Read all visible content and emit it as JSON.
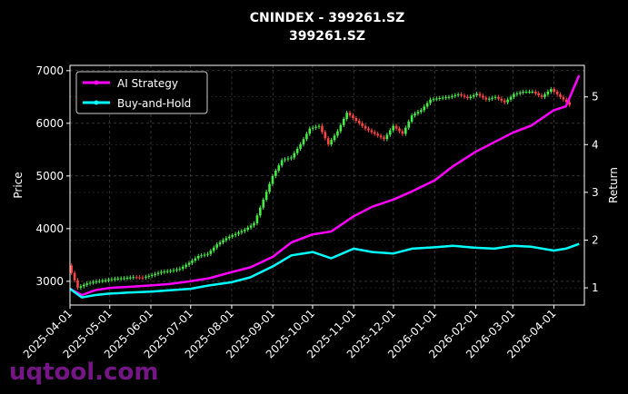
{
  "chart_data": {
    "type": "line",
    "title": "CNINDEX - 399261.SZ",
    "subtitle": "399261.SZ",
    "xlabel": "",
    "ylabel": "Price",
    "y2label": "Return",
    "x_ticks": [
      "2025-04-01",
      "2025-05-01",
      "2025-06-01",
      "2025-07-01",
      "2025-08-01",
      "2025-09-01",
      "2025-10-01",
      "2025-11-01",
      "2025-12-01",
      "2026-01-01",
      "2026-02-01",
      "2026-03-01",
      "2026-04-01"
    ],
    "ylim": [
      2550,
      7100
    ],
    "y_ticks": [
      3000,
      4000,
      5000,
      6000,
      7000
    ],
    "y2lim": [
      0.64,
      5.66
    ],
    "y2_ticks": [
      1,
      2,
      3,
      4,
      5
    ],
    "grid": true,
    "legend_position": "top-left",
    "price_candles": {
      "description_in_chart": "candlestick",
      "up_color": "#44ee44",
      "down_color": "#ff4444",
      "points": [
        [
          "2025-04-01",
          3300
        ],
        [
          "2025-04-08",
          2880
        ],
        [
          "2025-04-15",
          2960
        ],
        [
          "2025-04-22",
          3000
        ],
        [
          "2025-04-29",
          3020
        ],
        [
          "2025-05-06",
          3050
        ],
        [
          "2025-05-13",
          3060
        ],
        [
          "2025-05-20",
          3080
        ],
        [
          "2025-05-27",
          3070
        ],
        [
          "2025-06-03",
          3120
        ],
        [
          "2025-06-10",
          3180
        ],
        [
          "2025-06-17",
          3200
        ],
        [
          "2025-06-24",
          3240
        ],
        [
          "2025-07-01",
          3350
        ],
        [
          "2025-07-08",
          3480
        ],
        [
          "2025-07-15",
          3520
        ],
        [
          "2025-07-22",
          3700
        ],
        [
          "2025-07-29",
          3820
        ],
        [
          "2025-08-05",
          3900
        ],
        [
          "2025-08-12",
          3980
        ],
        [
          "2025-08-19",
          4100
        ],
        [
          "2025-08-26",
          4550
        ],
        [
          "2025-09-02",
          5000
        ],
        [
          "2025-09-09",
          5300
        ],
        [
          "2025-09-16",
          5350
        ],
        [
          "2025-09-23",
          5600
        ],
        [
          "2025-09-30",
          5900
        ],
        [
          "2025-10-07",
          5950
        ],
        [
          "2025-10-14",
          5600
        ],
        [
          "2025-10-21",
          5850
        ],
        [
          "2025-10-28",
          6200
        ],
        [
          "2025-11-04",
          6050
        ],
        [
          "2025-11-11",
          5900
        ],
        [
          "2025-11-18",
          5800
        ],
        [
          "2025-11-25",
          5700
        ],
        [
          "2025-12-02",
          5950
        ],
        [
          "2025-12-09",
          5800
        ],
        [
          "2025-12-16",
          6150
        ],
        [
          "2025-12-23",
          6250
        ],
        [
          "2025-12-30",
          6450
        ],
        [
          "2026-01-06",
          6480
        ],
        [
          "2026-01-13",
          6500
        ],
        [
          "2026-01-20",
          6550
        ],
        [
          "2026-01-27",
          6480
        ],
        [
          "2026-02-03",
          6560
        ],
        [
          "2026-02-10",
          6450
        ],
        [
          "2026-02-17",
          6500
        ],
        [
          "2026-02-24",
          6400
        ],
        [
          "2026-03-03",
          6550
        ],
        [
          "2026-03-10",
          6600
        ],
        [
          "2026-03-17",
          6600
        ],
        [
          "2026-03-24",
          6500
        ],
        [
          "2026-03-31",
          6650
        ],
        [
          "2026-04-07",
          6500
        ],
        [
          "2026-04-14",
          6350
        ]
      ]
    },
    "series": [
      {
        "name": "AI Strategy",
        "axis": "right",
        "color": "#ff00ff",
        "values": [
          [
            "2025-04-01",
            0.98
          ],
          [
            "2025-04-10",
            0.85
          ],
          [
            "2025-04-20",
            0.95
          ],
          [
            "2025-05-01",
            1.0
          ],
          [
            "2025-05-15",
            1.02
          ],
          [
            "2025-06-01",
            1.05
          ],
          [
            "2025-06-15",
            1.08
          ],
          [
            "2025-07-01",
            1.14
          ],
          [
            "2025-07-15",
            1.2
          ],
          [
            "2025-08-01",
            1.33
          ],
          [
            "2025-08-15",
            1.43
          ],
          [
            "2025-09-01",
            1.65
          ],
          [
            "2025-09-15",
            1.95
          ],
          [
            "2025-10-01",
            2.12
          ],
          [
            "2025-10-15",
            2.18
          ],
          [
            "2025-11-01",
            2.5
          ],
          [
            "2025-11-15",
            2.7
          ],
          [
            "2025-12-01",
            2.85
          ],
          [
            "2025-12-15",
            3.02
          ],
          [
            "2026-01-01",
            3.25
          ],
          [
            "2026-01-15",
            3.55
          ],
          [
            "2026-02-01",
            3.85
          ],
          [
            "2026-02-15",
            4.05
          ],
          [
            "2026-03-01",
            4.25
          ],
          [
            "2026-03-15",
            4.4
          ],
          [
            "2026-04-01",
            4.72
          ],
          [
            "2026-04-10",
            4.8
          ],
          [
            "2026-04-20",
            5.45
          ]
        ]
      },
      {
        "name": "Buy-and-Hold",
        "axis": "right",
        "color": "#00ffff",
        "values": [
          [
            "2025-04-01",
            0.98
          ],
          [
            "2025-04-10",
            0.8
          ],
          [
            "2025-04-20",
            0.85
          ],
          [
            "2025-05-01",
            0.88
          ],
          [
            "2025-05-15",
            0.9
          ],
          [
            "2025-06-01",
            0.92
          ],
          [
            "2025-06-15",
            0.95
          ],
          [
            "2025-07-01",
            0.98
          ],
          [
            "2025-07-15",
            1.05
          ],
          [
            "2025-08-01",
            1.12
          ],
          [
            "2025-08-15",
            1.22
          ],
          [
            "2025-09-01",
            1.45
          ],
          [
            "2025-09-15",
            1.68
          ],
          [
            "2025-10-01",
            1.75
          ],
          [
            "2025-10-15",
            1.62
          ],
          [
            "2025-11-01",
            1.82
          ],
          [
            "2025-11-15",
            1.75
          ],
          [
            "2025-12-01",
            1.72
          ],
          [
            "2025-12-15",
            1.82
          ],
          [
            "2026-01-01",
            1.85
          ],
          [
            "2026-01-15",
            1.88
          ],
          [
            "2026-02-01",
            1.84
          ],
          [
            "2026-02-15",
            1.82
          ],
          [
            "2026-03-01",
            1.88
          ],
          [
            "2026-03-15",
            1.86
          ],
          [
            "2026-04-01",
            1.78
          ],
          [
            "2026-04-10",
            1.82
          ],
          [
            "2026-04-20",
            1.92
          ]
        ]
      }
    ]
  },
  "watermark": "uqtool.com"
}
